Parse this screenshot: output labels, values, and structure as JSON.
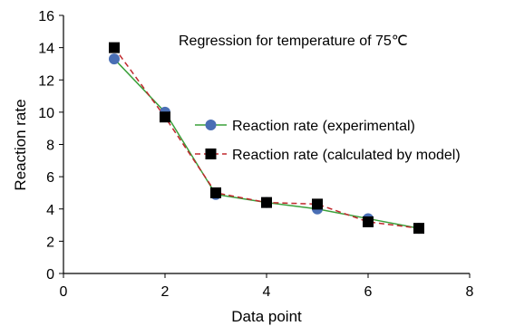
{
  "chart_data": {
    "type": "line",
    "title": "",
    "annotation": "Regression for temperature of 75℃",
    "xlabel": "Data point",
    "ylabel": "Reaction rate",
    "xlim": [
      0,
      8
    ],
    "ylim": [
      0,
      16
    ],
    "xticks": [
      0,
      2,
      4,
      6,
      8
    ],
    "yticks": [
      0,
      2,
      4,
      6,
      8,
      10,
      12,
      14,
      16
    ],
    "grid": false,
    "legend_position": "center-right",
    "x": [
      1,
      2,
      3,
      4,
      5,
      6,
      7
    ],
    "series": [
      {
        "name": "Reaction rate (experimental)",
        "values": [
          13.3,
          10.0,
          4.9,
          4.4,
          4.0,
          3.4,
          2.8
        ],
        "line_color": "#3aa03a",
        "marker_color": "#4a6fb5",
        "marker": "circle",
        "line_style": "solid"
      },
      {
        "name": "Reaction rate (calculated by model)",
        "values": [
          14.0,
          9.7,
          5.0,
          4.4,
          4.3,
          3.2,
          2.8
        ],
        "line_color": "#c0282d",
        "marker_color": "#000000",
        "marker": "square",
        "line_style": "dashed"
      }
    ]
  }
}
